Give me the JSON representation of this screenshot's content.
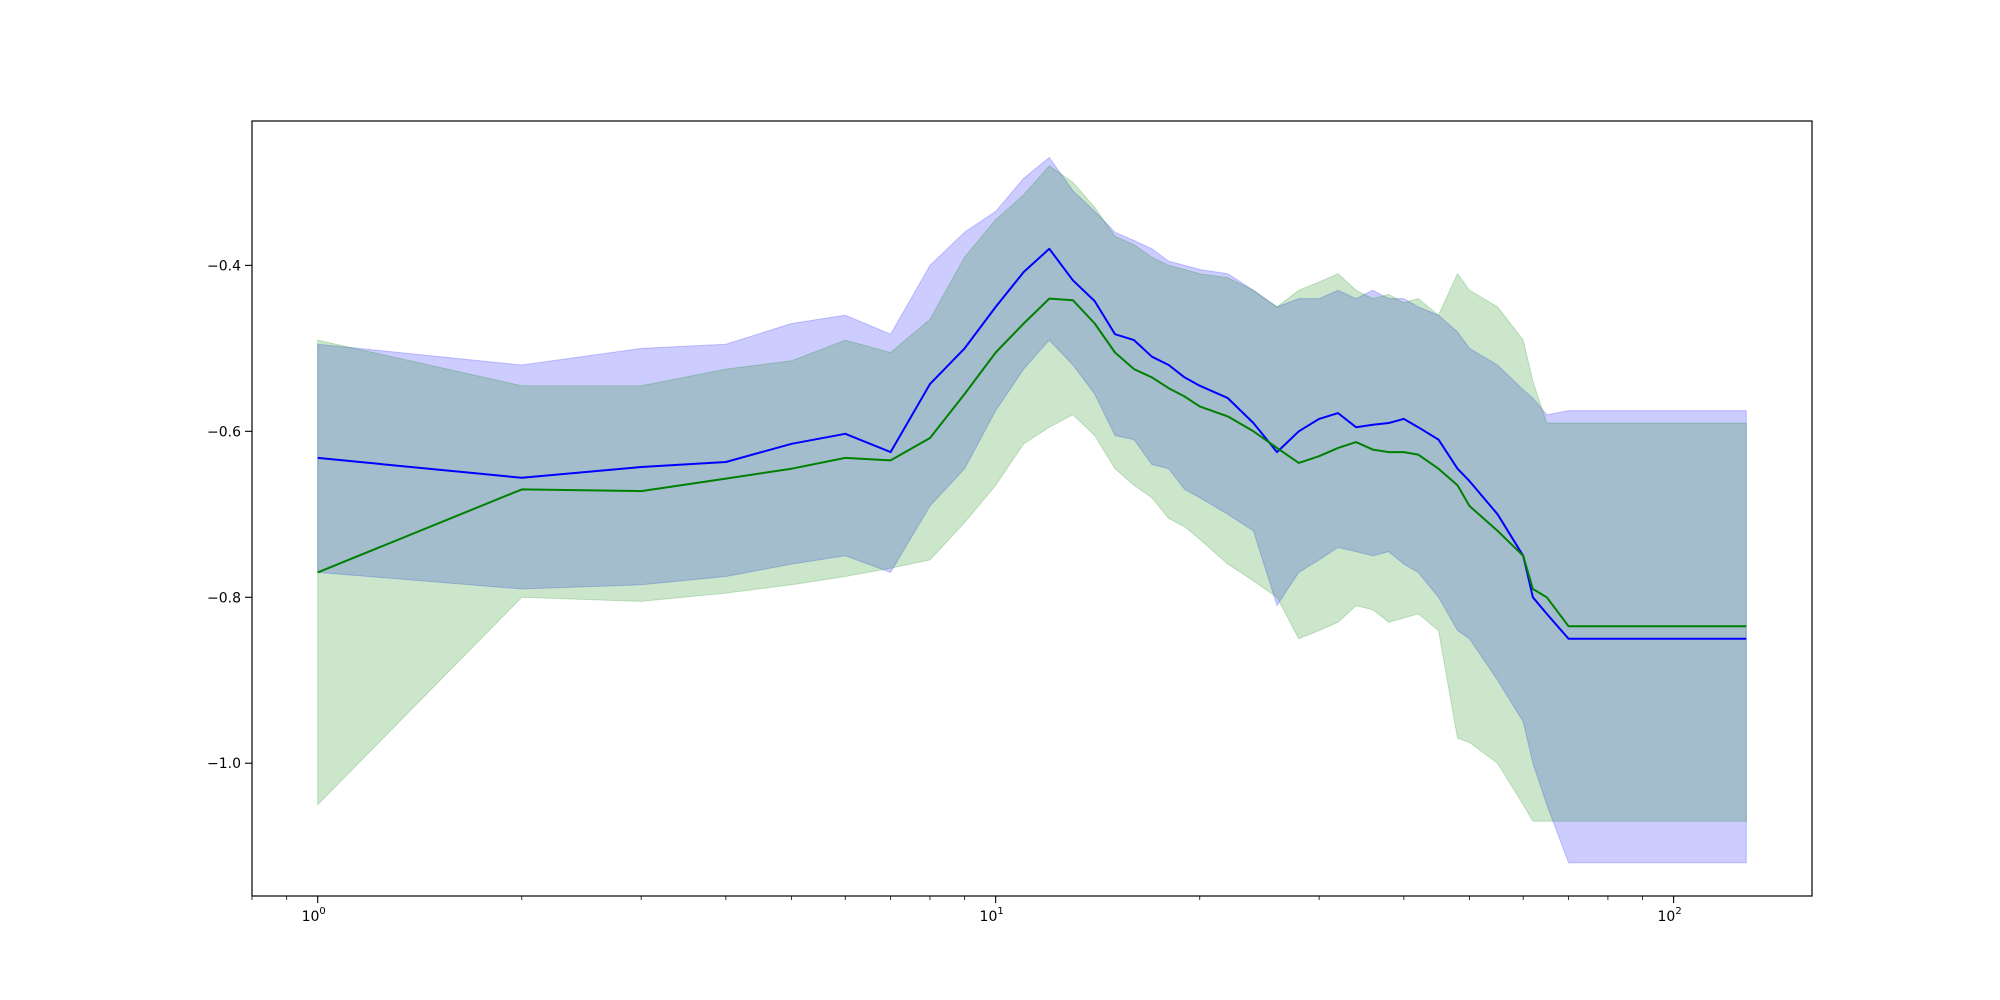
{
  "chart_data": {
    "type": "line",
    "title": "",
    "xlabel": "",
    "ylabel": "",
    "x_scale": "log",
    "xlim": [
      0.8,
      160
    ],
    "ylim": [
      -1.16,
      -0.226
    ],
    "grid": false,
    "x_ticks": [
      {
        "value": 1,
        "base": "10",
        "exponent": "0"
      },
      {
        "value": 10,
        "base": "10",
        "exponent": "1"
      },
      {
        "value": 100,
        "base": "10",
        "exponent": "2"
      }
    ],
    "y_ticks": [
      {
        "value": -0.4,
        "label": "−0.4"
      },
      {
        "value": -0.6,
        "label": "−0.6"
      },
      {
        "value": -0.8,
        "label": "−0.8"
      },
      {
        "value": -1.0,
        "label": "−1.0"
      }
    ],
    "x": [
      1,
      2,
      3,
      4,
      5,
      6,
      7,
      8,
      9,
      10,
      11,
      12,
      13,
      14,
      15,
      16,
      17,
      18,
      19,
      20,
      22,
      24,
      26,
      28,
      30,
      32,
      34,
      36,
      38,
      40,
      42,
      45,
      48,
      50,
      55,
      60,
      62,
      65,
      70,
      128
    ],
    "series": [
      {
        "color": "#0000ff",
        "band_color": "#0000ff",
        "band_opacity": 0.2,
        "mean": [
          -0.632,
          -0.656,
          -0.643,
          -0.637,
          -0.615,
          -0.603,
          -0.625,
          -0.543,
          -0.5,
          -0.45,
          -0.408,
          -0.38,
          -0.418,
          -0.443,
          -0.483,
          -0.49,
          -0.51,
          -0.52,
          -0.535,
          -0.545,
          -0.56,
          -0.59,
          -0.625,
          -0.6,
          -0.585,
          -0.578,
          -0.595,
          -0.592,
          -0.59,
          -0.585,
          -0.595,
          -0.61,
          -0.645,
          -0.66,
          -0.7,
          -0.75,
          -0.8,
          -0.82,
          -0.85,
          -0.85
        ],
        "upper": [
          -0.495,
          -0.52,
          -0.5,
          -0.495,
          -0.47,
          -0.46,
          -0.483,
          -0.4,
          -0.36,
          -0.335,
          -0.295,
          -0.27,
          -0.31,
          -0.335,
          -0.36,
          -0.37,
          -0.38,
          -0.395,
          -0.4,
          -0.405,
          -0.41,
          -0.43,
          -0.45,
          -0.44,
          -0.44,
          -0.43,
          -0.44,
          -0.43,
          -0.44,
          -0.44,
          -0.45,
          -0.46,
          -0.48,
          -0.5,
          -0.52,
          -0.55,
          -0.56,
          -0.58,
          -0.575,
          -0.575
        ],
        "lower": [
          -0.77,
          -0.79,
          -0.785,
          -0.775,
          -0.76,
          -0.75,
          -0.77,
          -0.69,
          -0.645,
          -0.575,
          -0.525,
          -0.49,
          -0.52,
          -0.555,
          -0.605,
          -0.61,
          -0.64,
          -0.645,
          -0.67,
          -0.68,
          -0.7,
          -0.72,
          -0.81,
          -0.77,
          -0.755,
          -0.74,
          -0.745,
          -0.75,
          -0.745,
          -0.76,
          -0.77,
          -0.8,
          -0.84,
          -0.85,
          -0.9,
          -0.95,
          -1.0,
          -1.05,
          -1.12,
          -1.12
        ]
      },
      {
        "color": "#008000",
        "band_color": "#008000",
        "band_opacity": 0.2,
        "mean": [
          -0.77,
          -0.67,
          -0.672,
          -0.657,
          -0.645,
          -0.632,
          -0.635,
          -0.608,
          -0.555,
          -0.505,
          -0.47,
          -0.44,
          -0.442,
          -0.47,
          -0.505,
          -0.525,
          -0.535,
          -0.548,
          -0.558,
          -0.57,
          -0.582,
          -0.6,
          -0.62,
          -0.638,
          -0.63,
          -0.62,
          -0.613,
          -0.622,
          -0.625,
          -0.625,
          -0.628,
          -0.645,
          -0.665,
          -0.69,
          -0.72,
          -0.75,
          -0.79,
          -0.8,
          -0.835,
          -0.835
        ],
        "upper": [
          -0.49,
          -0.545,
          -0.545,
          -0.525,
          -0.515,
          -0.49,
          -0.505,
          -0.465,
          -0.39,
          -0.345,
          -0.315,
          -0.28,
          -0.3,
          -0.33,
          -0.365,
          -0.375,
          -0.39,
          -0.4,
          -0.405,
          -0.41,
          -0.415,
          -0.43,
          -0.45,
          -0.43,
          -0.42,
          -0.41,
          -0.43,
          -0.44,
          -0.435,
          -0.445,
          -0.44,
          -0.46,
          -0.41,
          -0.43,
          -0.45,
          -0.49,
          -0.54,
          -0.59,
          -0.59,
          -0.59
        ],
        "lower": [
          -1.05,
          -0.8,
          -0.805,
          -0.795,
          -0.785,
          -0.775,
          -0.765,
          -0.755,
          -0.71,
          -0.665,
          -0.615,
          -0.595,
          -0.58,
          -0.605,
          -0.645,
          -0.665,
          -0.68,
          -0.705,
          -0.715,
          -0.73,
          -0.76,
          -0.78,
          -0.8,
          -0.85,
          -0.84,
          -0.83,
          -0.81,
          -0.815,
          -0.83,
          -0.825,
          -0.82,
          -0.84,
          -0.97,
          -0.975,
          -1.0,
          -1.05,
          -1.07,
          -1.07,
          -1.07,
          -1.07
        ]
      }
    ]
  }
}
